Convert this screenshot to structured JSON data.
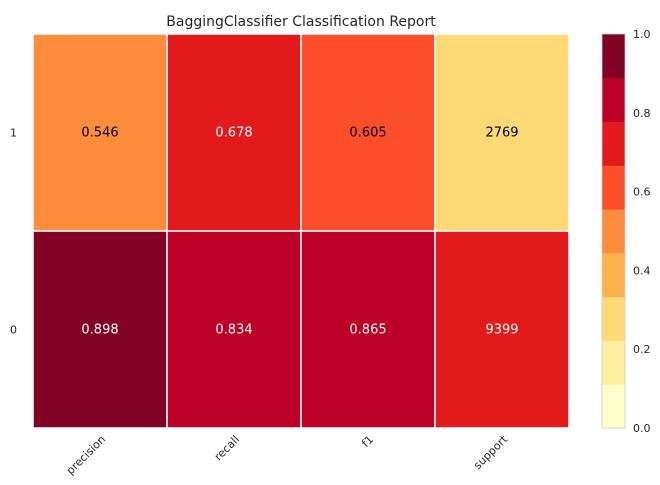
{
  "chart_data": {
    "type": "heatmap",
    "title": "BaggingClassifier Classification Report",
    "x_categories": [
      "precision",
      "recall",
      "f1",
      "support"
    ],
    "y_categories": [
      "1",
      "0"
    ],
    "cell_labels": [
      [
        "0.546",
        "0.678",
        "0.605",
        "2769"
      ],
      [
        "0.898",
        "0.834",
        "0.865",
        "9399"
      ]
    ],
    "color_values": [
      [
        0.546,
        0.678,
        0.605,
        0.295
      ],
      [
        0.898,
        0.834,
        0.865,
        0.7
      ]
    ],
    "colorbar": {
      "ticks": [
        "0.0",
        "0.2",
        "0.4",
        "0.6",
        "0.8",
        "1.0"
      ],
      "tick_values": [
        0.0,
        0.2,
        0.4,
        0.6,
        0.8,
        1.0
      ],
      "range": [
        0,
        1
      ],
      "bins": 9,
      "colormap": "YlOrRd"
    },
    "grid": false
  }
}
